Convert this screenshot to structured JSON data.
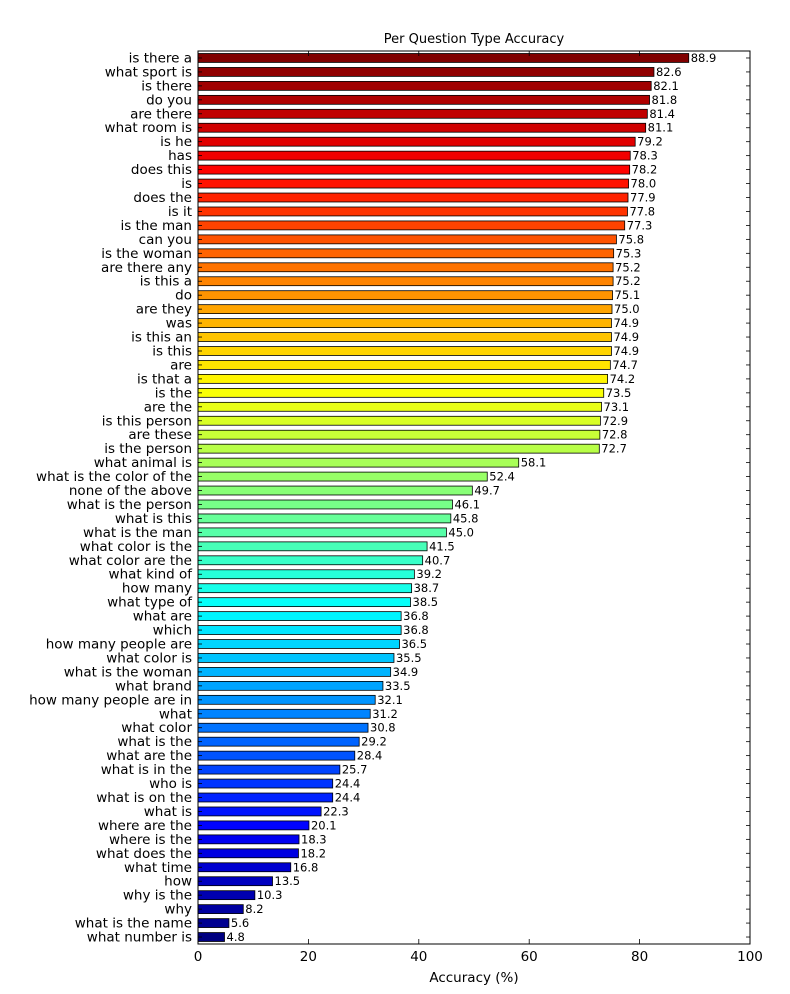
{
  "chart_data": {
    "type": "bar",
    "orientation": "horizontal",
    "title": "Per Question Type Accuracy",
    "xlabel": "Accuracy (%)",
    "ylabel": "",
    "xlim": [
      0,
      100
    ],
    "xticks": [
      0,
      20,
      40,
      60,
      80,
      100
    ],
    "xtick_labels": [
      "0",
      "20",
      "40",
      "60",
      "80",
      "100"
    ],
    "grid": false,
    "colormap": "jet",
    "categories": [
      "is there a",
      "what sport is",
      "is there",
      "do you",
      "are there",
      "what room is",
      "is he",
      "has",
      "does this",
      "is",
      "does the",
      "is it",
      "is the man",
      "can you",
      "is the woman",
      "are there any",
      "is this a",
      "do",
      "are they",
      "was",
      "is this an",
      "is this",
      "are",
      "is that a",
      "is the",
      "are the",
      "is this person",
      "are these",
      "is the person",
      "what animal is",
      "what is the color of the",
      "none of the above",
      "what is the person",
      "what is this",
      "what is the man",
      "what color is the",
      "what color are the",
      "what kind of",
      "how many",
      "what type of",
      "what are",
      "which",
      "how many people are",
      "what color is",
      "what is the woman",
      "what brand",
      "how many people are in",
      "what",
      "what color",
      "what is the",
      "what are the",
      "what is in the",
      "who is",
      "what is on the",
      "what is",
      "where are the",
      "where is the",
      "what does the",
      "what time",
      "how",
      "why is the",
      "why",
      "what is the name",
      "what number is"
    ],
    "values": [
      88.9,
      82.6,
      82.1,
      81.8,
      81.4,
      81.1,
      79.2,
      78.3,
      78.2,
      78.0,
      77.9,
      77.8,
      77.3,
      75.8,
      75.3,
      75.2,
      75.2,
      75.1,
      75.0,
      74.9,
      74.9,
      74.9,
      74.7,
      74.2,
      73.5,
      73.1,
      72.9,
      72.8,
      72.7,
      58.1,
      52.4,
      49.7,
      46.1,
      45.8,
      45.0,
      41.5,
      40.7,
      39.2,
      38.7,
      38.5,
      36.8,
      36.8,
      36.5,
      35.5,
      34.9,
      33.5,
      32.1,
      31.2,
      30.8,
      29.2,
      28.4,
      25.7,
      24.4,
      24.4,
      22.3,
      20.1,
      18.3,
      18.2,
      16.8,
      13.5,
      10.3,
      8.2,
      5.6,
      4.8
    ],
    "value_labels": [
      "88.9",
      "82.6",
      "82.1",
      "81.8",
      "81.4",
      "81.1",
      "79.2",
      "78.3",
      "78.2",
      "78.0",
      "77.9",
      "77.8",
      "77.3",
      "75.8",
      "75.3",
      "75.2",
      "75.2",
      "75.1",
      "75.0",
      "74.9",
      "74.9",
      "74.9",
      "74.7",
      "74.2",
      "73.5",
      "73.1",
      "72.9",
      "72.8",
      "72.7",
      "58.1",
      "52.4",
      "49.7",
      "46.1",
      "45.8",
      "45.0",
      "41.5",
      "40.7",
      "39.2",
      "38.7",
      "38.5",
      "36.8",
      "36.8",
      "36.5",
      "35.5",
      "34.9",
      "33.5",
      "32.1",
      "31.2",
      "30.8",
      "29.2",
      "28.4",
      "25.7",
      "24.4",
      "24.4",
      "22.3",
      "20.1",
      "18.3",
      "18.2",
      "16.8",
      "13.5",
      "10.3",
      "8.2",
      "5.6",
      "4.8"
    ]
  }
}
